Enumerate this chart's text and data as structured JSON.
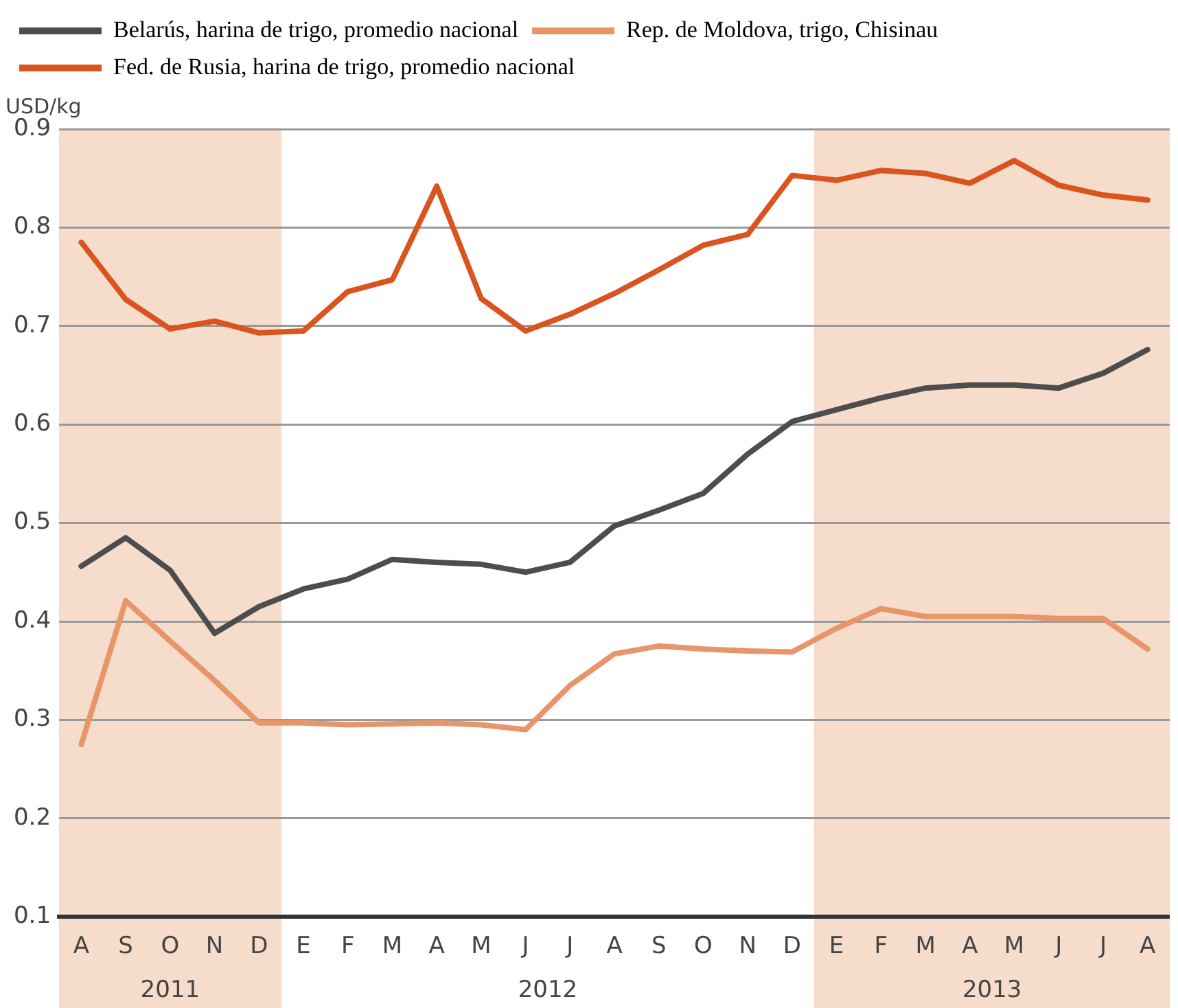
{
  "chart_data": {
    "type": "line",
    "ylabel": "USD/kg",
    "legend": "top left",
    "grid": "y",
    "marker": "none",
    "line_style": "solid",
    "categories": [
      "A",
      "S",
      "O",
      "N",
      "D",
      "E",
      "F",
      "M",
      "A",
      "M",
      "J",
      "J",
      "A",
      "S",
      "O",
      "N",
      "D",
      "E",
      "F",
      "M",
      "A",
      "M",
      "J",
      "J",
      "A"
    ],
    "series": [
      {
        "name": "Belarús, harina de trigo, promedio nacional",
        "color": "#4d4d4d",
        "values": [
          0.456,
          0.485,
          0.452,
          0.388,
          0.415,
          0.433,
          0.443,
          0.463,
          0.46,
          0.458,
          0.45,
          0.46,
          0.497,
          0.513,
          0.53,
          0.57,
          0.603,
          0.615,
          0.627,
          0.637,
          0.64,
          0.64,
          0.637,
          0.652,
          0.676
        ]
      },
      {
        "name": "Rep. de Moldova, trigo, Chisinau",
        "color": "#e8956a",
        "values": [
          0.275,
          0.421,
          0.38,
          0.34,
          0.297,
          0.297,
          0.295,
          0.296,
          0.297,
          0.295,
          0.29,
          0.335,
          0.367,
          0.375,
          0.372,
          0.37,
          0.369,
          0.393,
          0.413,
          0.405,
          0.405,
          0.405,
          0.403,
          0.403,
          0.372
        ]
      },
      {
        "name": "Fed. de Rusia, harina de trigo, promedio nacional",
        "color": "#d9541e",
        "values": [
          0.785,
          0.727,
          0.697,
          0.705,
          0.693,
          0.695,
          0.735,
          0.747,
          0.842,
          0.728,
          0.695,
          0.712,
          0.733,
          0.757,
          0.782,
          0.793,
          0.853,
          0.848,
          0.858,
          0.855,
          0.845,
          0.868,
          0.843,
          0.833,
          0.828
        ]
      }
    ],
    "ylim": [
      0.1,
      0.9
    ],
    "yticks": [
      0.1,
      0.2,
      0.3,
      0.4,
      0.5,
      0.6,
      0.7,
      0.8,
      0.9
    ],
    "annotations": [
      "2011",
      "2012",
      "2013"
    ]
  }
}
